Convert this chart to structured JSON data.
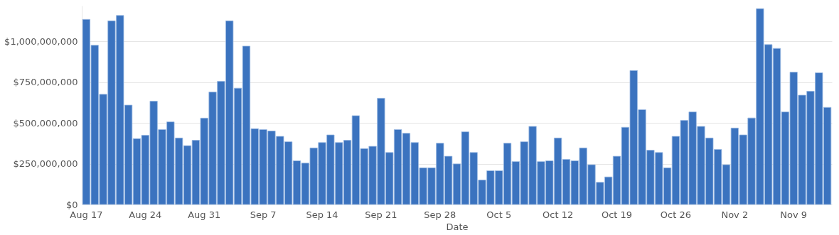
{
  "chart_data": {
    "type": "bar",
    "xlabel": "Date",
    "categories": [
      "Aug 17",
      null,
      null,
      null,
      null,
      null,
      null,
      "Aug 24",
      null,
      null,
      null,
      null,
      null,
      null,
      "Aug 31",
      null,
      null,
      null,
      null,
      null,
      null,
      "Sep 7",
      null,
      null,
      null,
      null,
      null,
      null,
      "Sep 14",
      null,
      null,
      null,
      null,
      null,
      null,
      "Sep 21",
      null,
      null,
      null,
      null,
      null,
      null,
      "Sep 28",
      null,
      null,
      null,
      null,
      null,
      null,
      "Oct 5",
      null,
      null,
      null,
      null,
      null,
      null,
      "Oct 12",
      null,
      null,
      null,
      null,
      null,
      null,
      "Oct 19",
      null,
      null,
      null,
      null,
      null,
      null,
      "Oct 26",
      null,
      null,
      null,
      null,
      null,
      null,
      "Nov 2",
      null,
      null,
      null,
      null,
      null,
      null,
      "Nov 9",
      null,
      null,
      null,
      null
    ],
    "values": [
      1136000000,
      977000000,
      676000000,
      1127000000,
      1160000000,
      610000000,
      404000000,
      425000000,
      634000000,
      460000000,
      507000000,
      408000000,
      361000000,
      394000000,
      530000000,
      690000000,
      756000000,
      1127000000,
      714000000,
      972000000,
      465000000,
      460000000,
      451000000,
      418000000,
      385000000,
      268000000,
      254000000,
      347000000,
      380000000,
      427000000,
      380000000,
      394000000,
      545000000,
      343000000,
      357000000,
      652000000,
      319000000,
      460000000,
      437000000,
      380000000,
      225000000,
      225000000,
      376000000,
      296000000,
      249000000,
      446000000,
      319000000,
      150000000,
      207000000,
      207000000,
      376000000,
      263000000,
      385000000,
      479000000,
      263000000,
      268000000,
      408000000,
      277000000,
      268000000,
      347000000,
      244000000,
      136000000,
      169000000,
      296000000,
      474000000,
      822000000,
      582000000,
      333000000,
      319000000,
      225000000,
      418000000,
      516000000,
      568000000,
      479000000,
      408000000,
      338000000,
      244000000,
      469000000,
      427000000,
      531000000,
      1202000000,
      981000000,
      958000000,
      568000000,
      812000000,
      671000000,
      695000000,
      808000000,
      596000000
    ],
    "color": "#3b73bf",
    "ylim": [
      0,
      1220000000
    ],
    "yticks": [
      {
        "value": 0,
        "label": "$0"
      },
      {
        "value": 250000000,
        "label": "$250,000,000"
      },
      {
        "value": 500000000,
        "label": "$500,000,000"
      },
      {
        "value": 750000000,
        "label": "$750,000,000"
      },
      {
        "value": 1000000000,
        "label": "$1,000,000,000"
      }
    ],
    "grid": "y"
  }
}
